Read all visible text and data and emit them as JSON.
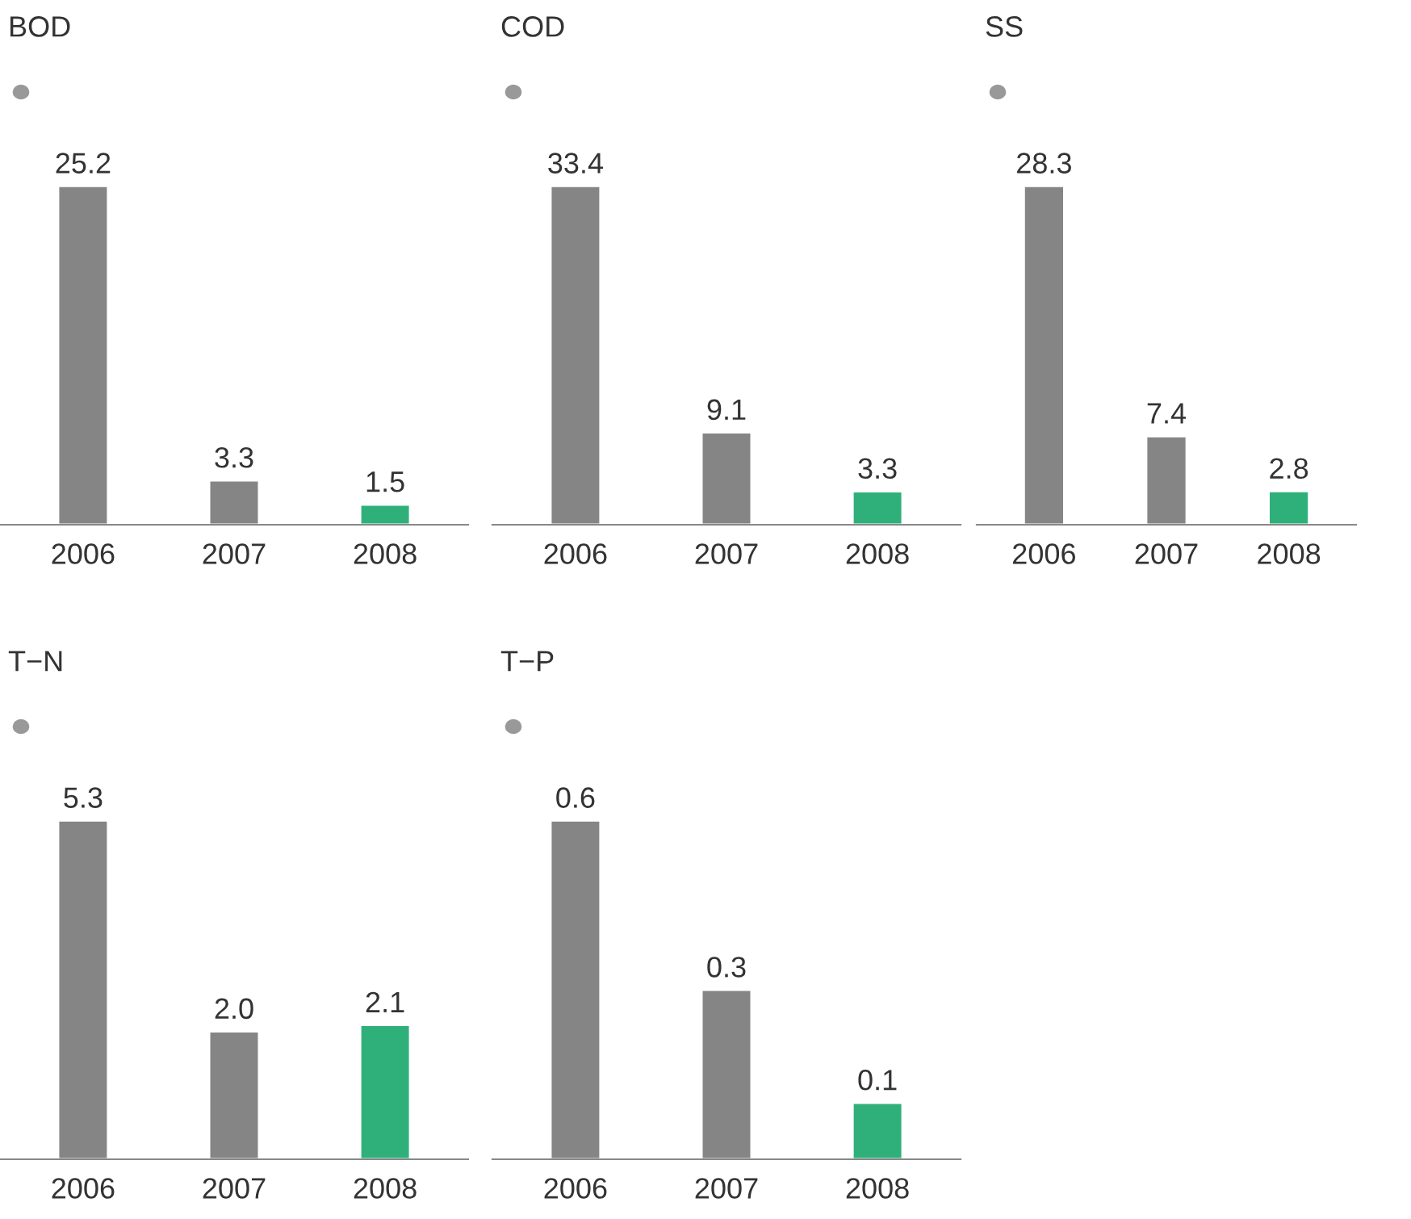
{
  "chart_data": [
    {
      "type": "bar",
      "title": "BOD",
      "categories": [
        "2006",
        "2007",
        "2008"
      ],
      "values": [
        25.2,
        3.3,
        1.5
      ],
      "colors": [
        "#858585",
        "#858585",
        "#2fb07a"
      ],
      "data_labels": true,
      "tick_labels": "x",
      "grid": false,
      "legend": false
    },
    {
      "type": "bar",
      "title": "COD",
      "categories": [
        "2006",
        "2007",
        "2008"
      ],
      "values": [
        33.4,
        9.1,
        3.3
      ],
      "colors": [
        "#858585",
        "#858585",
        "#2fb07a"
      ],
      "data_labels": true,
      "tick_labels": "x",
      "grid": false,
      "legend": false
    },
    {
      "type": "bar",
      "title": "SS",
      "categories": [
        "2006",
        "2007",
        "2008"
      ],
      "values": [
        28.3,
        7.4,
        2.8
      ],
      "colors": [
        "#858585",
        "#858585",
        "#2fb07a"
      ],
      "data_labels": true,
      "tick_labels": "x",
      "grid": false,
      "legend": false
    },
    {
      "type": "bar",
      "title": "T−N",
      "categories": [
        "2006",
        "2007",
        "2008"
      ],
      "values": [
        5.3,
        2.0,
        2.1
      ],
      "value_labels": [
        "5.3",
        "2.0",
        "2.1"
      ],
      "colors": [
        "#858585",
        "#858585",
        "#2fb07a"
      ],
      "tick_labels": "x",
      "grid": false,
      "legend": false
    },
    {
      "type": "bar",
      "title": "T−P",
      "categories": [
        "2006",
        "2007",
        "2008"
      ],
      "values": [
        0.6,
        0.3,
        0.1
      ],
      "colors": [
        "#858585",
        "#858585",
        "#2fb07a"
      ],
      "data_labels": true,
      "tick_labels": "x",
      "grid": false,
      "legend": false
    }
  ]
}
